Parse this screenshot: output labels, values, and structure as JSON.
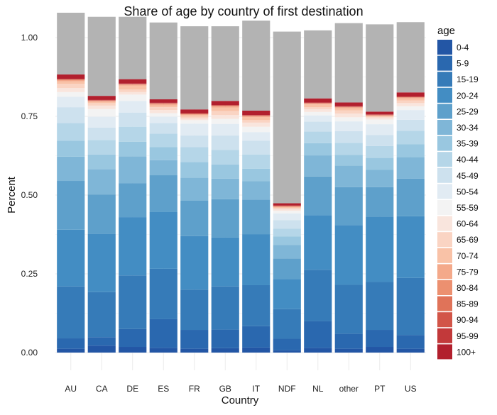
{
  "chart_data": {
    "type": "bar",
    "stacked": true,
    "title": "Share of age by country of first destination",
    "xlabel": "Country",
    "ylabel": "Percent",
    "ylim": [
      0,
      1
    ],
    "yticks": [
      "0.00",
      "0.25",
      "0.50",
      "0.75",
      "1.00"
    ],
    "grid": true,
    "legend": {
      "title": "age",
      "position": "right"
    },
    "categories": [
      "AU",
      "CA",
      "DE",
      "ES",
      "FR",
      "GB",
      "IT",
      "NDF",
      "NL",
      "other",
      "PT",
      "US"
    ],
    "series": [
      {
        "name": "0-4",
        "color": "#2356a5",
        "values": [
          0.012,
          0.022,
          0.018,
          0.015,
          0.012,
          0.014,
          0.016,
          0.007,
          0.015,
          0.012,
          0.018,
          0.012
        ]
      },
      {
        "name": "5-9",
        "color": "#2a68af",
        "values": [
          0.033,
          0.027,
          0.057,
          0.091,
          0.06,
          0.059,
          0.068,
          0.037,
          0.085,
          0.048,
          0.054,
          0.044
        ]
      },
      {
        "name": "15-19",
        "color": "#367bb8",
        "values": [
          0.165,
          0.143,
          0.17,
          0.16,
          0.128,
          0.137,
          0.13,
          0.094,
          0.163,
          0.155,
          0.152,
          0.181
        ]
      },
      {
        "name": "20-24",
        "color": "#438dc3",
        "values": [
          0.18,
          0.185,
          0.185,
          0.18,
          0.17,
          0.155,
          0.162,
          0.095,
          0.173,
          0.19,
          0.208,
          0.196
        ]
      },
      {
        "name": "25-29",
        "color": "#5ea0cb",
        "values": [
          0.155,
          0.125,
          0.108,
          0.117,
          0.112,
          0.122,
          0.11,
          0.066,
          0.123,
          0.12,
          0.093,
          0.119
        ]
      },
      {
        "name": "30-34",
        "color": "#7fb6d7",
        "values": [
          0.077,
          0.08,
          0.085,
          0.048,
          0.073,
          0.065,
          0.058,
          0.043,
          0.067,
          0.069,
          0.055,
          0.069
        ]
      },
      {
        "name": "35-39",
        "color": "#99c7e0",
        "values": [
          0.051,
          0.047,
          0.046,
          0.041,
          0.05,
          0.045,
          0.04,
          0.027,
          0.039,
          0.034,
          0.038,
          0.04
        ]
      },
      {
        "name": "40-44",
        "color": "#b5d6e8",
        "values": [
          0.056,
          0.046,
          0.048,
          0.043,
          0.047,
          0.046,
          0.045,
          0.024,
          0.037,
          0.038,
          0.038,
          0.043
        ]
      },
      {
        "name": "45-49",
        "color": "#cde1ee",
        "values": [
          0.05,
          0.039,
          0.045,
          0.034,
          0.037,
          0.046,
          0.044,
          0.027,
          0.031,
          0.037,
          0.035,
          0.035
        ]
      },
      {
        "name": "50-54",
        "color": "#e1ebf3",
        "values": [
          0.033,
          0.035,
          0.037,
          0.02,
          0.038,
          0.037,
          0.027,
          0.022,
          0.02,
          0.031,
          0.034,
          0.031
        ]
      },
      {
        "name": "55-59",
        "color": "#f3f3f3",
        "values": [
          0.015,
          0.024,
          0.02,
          0.011,
          0.011,
          0.016,
          0.017,
          0.008,
          0.011,
          0.013,
          0.015,
          0.012
        ]
      },
      {
        "name": "60-64",
        "color": "#f9e5dd",
        "values": [
          0.013,
          0.011,
          0.008,
          0.01,
          0.005,
          0.012,
          0.013,
          0.005,
          0.009,
          0.012,
          0.006,
          0.01
        ]
      },
      {
        "name": "65-69",
        "color": "#fad4c3",
        "values": [
          0.013,
          0.008,
          0.008,
          0.009,
          0.006,
          0.013,
          0.008,
          0.004,
          0.006,
          0.01,
          0.003,
          0.008
        ]
      },
      {
        "name": "70-74",
        "color": "#f9c2a7",
        "values": [
          0.008,
          0.004,
          0.013,
          0.006,
          0.005,
          0.011,
          0.01,
          0.003,
          0.009,
          0.007,
          0.002,
          0.007
        ]
      },
      {
        "name": "75-79",
        "color": "#f4a98a",
        "values": [
          0.003,
          0.002,
          0.002,
          0.003,
          0.002,
          0.003,
          0.002,
          0.001,
          0.002,
          0.002,
          0.001,
          0.002
        ]
      },
      {
        "name": "80-84",
        "color": "#ec9070",
        "values": [
          0.002,
          0.001,
          0.001,
          0.002,
          0.001,
          0.002,
          0.001,
          0.001,
          0.001,
          0.001,
          0.001,
          0.001
        ]
      },
      {
        "name": "85-89",
        "color": "#e07359",
        "values": [
          0.001,
          0.001,
          0.001,
          0.001,
          0.001,
          0.001,
          0.001,
          0.001,
          0.001,
          0.001,
          0.001,
          0.001
        ]
      },
      {
        "name": "90-94",
        "color": "#d25548",
        "values": [
          0.001,
          0.001,
          0.001,
          0.001,
          0.001,
          0.001,
          0.001,
          0.001,
          0.001,
          0.001,
          0.001,
          0.001
        ]
      },
      {
        "name": "95-99",
        "color": "#c2393a",
        "values": [
          0.001,
          0.001,
          0.001,
          0.001,
          0.001,
          0.001,
          0.001,
          0.001,
          0.001,
          0.001,
          0.001,
          0.001
        ]
      },
      {
        "name": "100+",
        "color": "#b21f2d",
        "values": [
          0.014,
          0.013,
          0.014,
          0.011,
          0.012,
          0.013,
          0.014,
          0.007,
          0.013,
          0.012,
          0.009,
          0.013
        ]
      },
      {
        "name": "",
        "color": "#b3b3b3",
        "values": [
          0.196,
          0.251,
          0.198,
          0.244,
          0.264,
          0.237,
          0.286,
          0.545,
          0.216,
          0.252,
          0.277,
          0.223
        ]
      }
    ]
  }
}
